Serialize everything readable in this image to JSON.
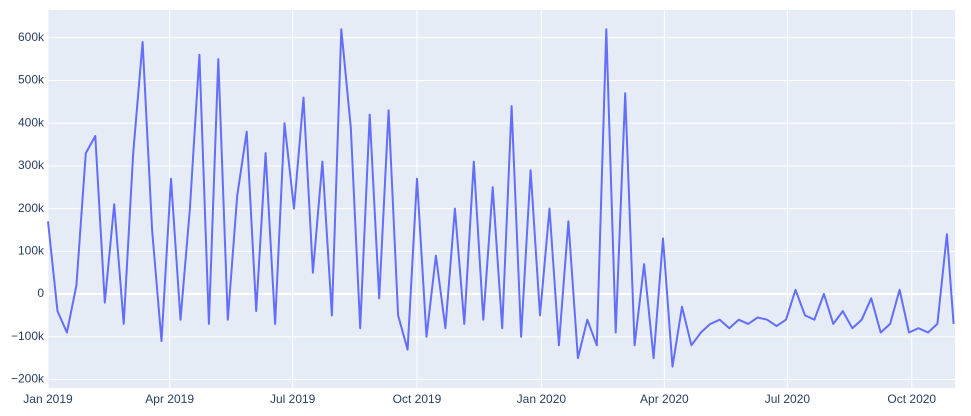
{
  "chart_data": {
    "type": "line",
    "color": "#636efa",
    "grid": true,
    "xlim": [
      "2019-01-01",
      "2020-11-02"
    ],
    "ylim": [
      -220000,
      665000
    ],
    "xticks": [
      {
        "value": "2019-01-01",
        "label": "Jan 2019"
      },
      {
        "value": "2019-04-01",
        "label": "Apr 2019"
      },
      {
        "value": "2019-07-01",
        "label": "Jul 2019"
      },
      {
        "value": "2019-10-01",
        "label": "Oct 2019"
      },
      {
        "value": "2020-01-01",
        "label": "Jan 2020"
      },
      {
        "value": "2020-04-01",
        "label": "Apr 2020"
      },
      {
        "value": "2020-07-01",
        "label": "Jul 2020"
      },
      {
        "value": "2020-10-01",
        "label": "Oct 2020"
      }
    ],
    "yticks": [
      {
        "value": -200000,
        "label": "−200k"
      },
      {
        "value": -100000,
        "label": "−100k"
      },
      0,
      {
        "value": 100000,
        "label": "100k"
      },
      {
        "value": 200000,
        "label": "200k"
      },
      {
        "value": 300000,
        "label": "300k"
      },
      {
        "value": 400000,
        "label": "400k"
      },
      {
        "value": 500000,
        "label": "500k"
      },
      {
        "value": 600000,
        "label": "600k"
      }
    ],
    "x": [
      "2019-01-01",
      "2019-01-08",
      "2019-01-15",
      "2019-01-22",
      "2019-01-29",
      "2019-02-05",
      "2019-02-12",
      "2019-02-19",
      "2019-02-26",
      "2019-03-05",
      "2019-03-12",
      "2019-03-19",
      "2019-03-26",
      "2019-04-02",
      "2019-04-09",
      "2019-04-16",
      "2019-04-23",
      "2019-04-30",
      "2019-05-07",
      "2019-05-14",
      "2019-05-21",
      "2019-05-28",
      "2019-06-04",
      "2019-06-11",
      "2019-06-18",
      "2019-06-25",
      "2019-07-02",
      "2019-07-09",
      "2019-07-16",
      "2019-07-23",
      "2019-07-30",
      "2019-08-06",
      "2019-08-13",
      "2019-08-20",
      "2019-08-27",
      "2019-09-03",
      "2019-09-10",
      "2019-09-17",
      "2019-09-24",
      "2019-10-01",
      "2019-10-08",
      "2019-10-15",
      "2019-10-22",
      "2019-10-29",
      "2019-11-05",
      "2019-11-12",
      "2019-11-19",
      "2019-11-26",
      "2019-12-03",
      "2019-12-10",
      "2019-12-17",
      "2019-12-24",
      "2019-12-31",
      "2020-01-07",
      "2020-01-14",
      "2020-01-21",
      "2020-01-28",
      "2020-02-04",
      "2020-02-11",
      "2020-02-18",
      "2020-02-25",
      "2020-03-03",
      "2020-03-10",
      "2020-03-17",
      "2020-03-24",
      "2020-03-31",
      "2020-04-07",
      "2020-04-14",
      "2020-04-21",
      "2020-04-28",
      "2020-05-05",
      "2020-05-12",
      "2020-05-19",
      "2020-05-26",
      "2020-06-02",
      "2020-06-09",
      "2020-06-16",
      "2020-06-23",
      "2020-06-30",
      "2020-07-07",
      "2020-07-14",
      "2020-07-21",
      "2020-07-28",
      "2020-08-04",
      "2020-08-11",
      "2020-08-18",
      "2020-08-25",
      "2020-09-01",
      "2020-09-08",
      "2020-09-15",
      "2020-09-22",
      "2020-09-29",
      "2020-10-06",
      "2020-10-13",
      "2020-10-20",
      "2020-10-27",
      "2020-11-01"
    ],
    "values": [
      170000,
      -40000,
      -90000,
      20000,
      330000,
      370000,
      -20000,
      210000,
      -70000,
      330000,
      590000,
      150000,
      -110000,
      270000,
      -60000,
      200000,
      560000,
      -70000,
      550000,
      -60000,
      230000,
      380000,
      -40000,
      330000,
      -70000,
      400000,
      200000,
      460000,
      50000,
      310000,
      -50000,
      620000,
      390000,
      -80000,
      420000,
      -10000,
      430000,
      -50000,
      -130000,
      270000,
      -100000,
      90000,
      -80000,
      200000,
      -70000,
      310000,
      -60000,
      250000,
      -80000,
      440000,
      -100000,
      290000,
      -50000,
      200000,
      -120000,
      170000,
      -150000,
      -60000,
      -120000,
      620000,
      -90000,
      470000,
      -120000,
      70000,
      -150000,
      130000,
      -170000,
      -30000,
      -120000,
      -90000,
      -70000,
      -60000,
      -80000,
      -60000,
      -70000,
      -55000,
      -60000,
      -75000,
      -60000,
      10000,
      -50000,
      -60000,
      0,
      -70000,
      -40000,
      -80000,
      -60000,
      -10000,
      -90000,
      -70000,
      10000,
      -90000,
      -80000,
      -90000,
      -70000,
      140000,
      -70000
    ]
  }
}
